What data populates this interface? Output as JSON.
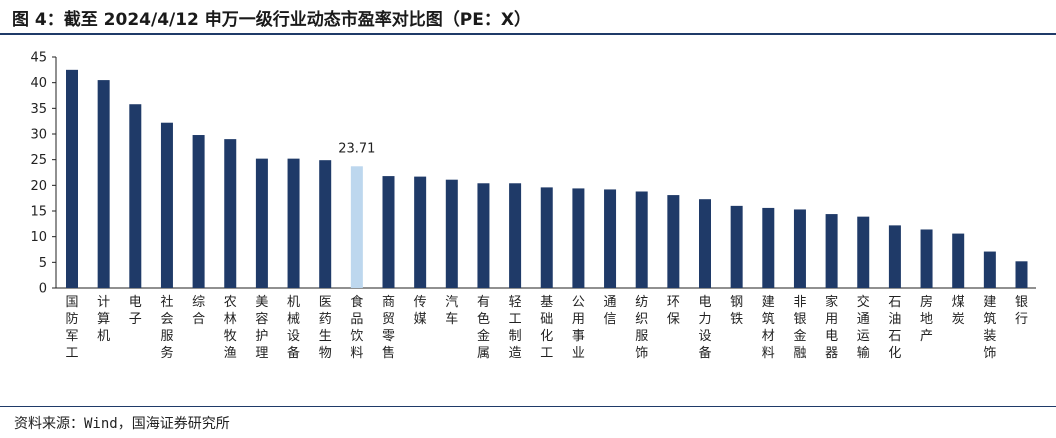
{
  "title": "图 4：截至 2024/4/12 申万一级行业动态市盈率对比图（PE：X）",
  "source": "资料来源：Wind，国海证券研究所",
  "colors": {
    "bar": "#1f3a68",
    "highlight": "#bdd7ee",
    "axis": "#222222"
  },
  "chart_data": {
    "type": "bar",
    "categories": [
      "国防军工",
      "计算机",
      "电子",
      "社会服务",
      "综合",
      "农林牧渔",
      "美容护理",
      "机械设备",
      "医药生物",
      "食品饮料",
      "商贸零售",
      "传媒",
      "汽车",
      "有色金属",
      "轻工制造",
      "基础化工",
      "公用事业",
      "通信",
      "纺织服饰",
      "环保",
      "电力设备",
      "钢铁",
      "建筑材料",
      "非银金融",
      "家用电器",
      "交通运输",
      "石油石化",
      "房地产",
      "煤炭",
      "建筑装饰",
      "银行"
    ],
    "values": [
      42.5,
      40.5,
      35.8,
      32.2,
      29.8,
      29.0,
      25.2,
      25.2,
      24.9,
      23.71,
      21.8,
      21.7,
      21.1,
      20.4,
      20.4,
      19.6,
      19.4,
      19.2,
      18.8,
      18.1,
      17.3,
      16.0,
      15.6,
      15.3,
      14.4,
      13.9,
      12.2,
      11.4,
      10.6,
      7.1,
      5.2
    ],
    "highlight_index": 9,
    "data_labels": [
      {
        "index": 9,
        "text": "23.71"
      }
    ],
    "ylim": [
      0,
      45
    ],
    "yticks": [
      0,
      5,
      10,
      15,
      20,
      25,
      30,
      35,
      40,
      45
    ],
    "grid": false,
    "legend": "none",
    "xlabel": "",
    "ylabel": ""
  }
}
